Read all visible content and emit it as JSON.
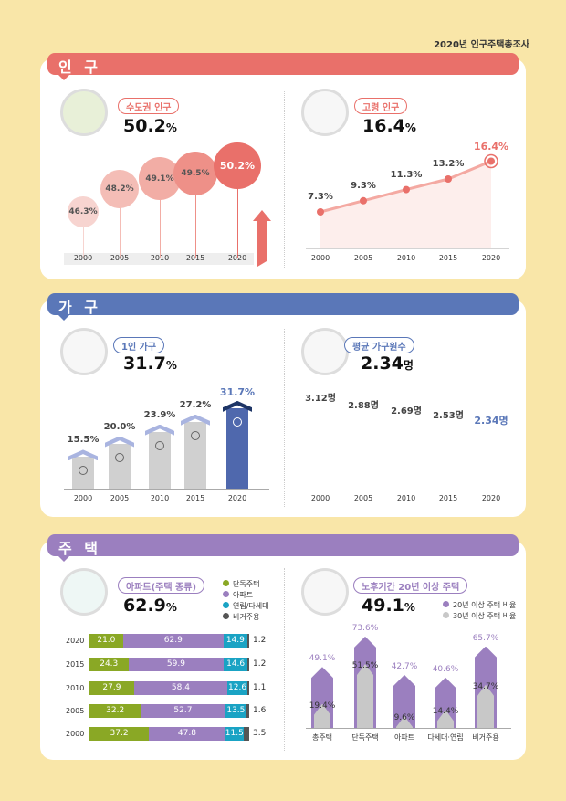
{
  "header": {
    "title": "2020년 인구주택총조사"
  },
  "sections": {
    "population": "인 구",
    "household": "가 구",
    "housing": "주 택"
  },
  "colors": {
    "population": "#e9706a",
    "household": "#5a77b8",
    "housing": "#9b7fbf",
    "bg": "#f9e6a8"
  },
  "capital": {
    "label": "수도권 인구",
    "value": "50.2",
    "unit": "%"
  },
  "elderly": {
    "label": "고령 인구",
    "value": "16.4",
    "unit": "%"
  },
  "single": {
    "label": "1인 가구",
    "value": "31.7",
    "unit": "%"
  },
  "avg": {
    "label": "평균 가구원수",
    "value": "2.34",
    "unit": "명"
  },
  "apt": {
    "label": "아파트(주택 종류)",
    "value": "62.9",
    "unit": "%"
  },
  "old": {
    "label": "노후기간 20년 이상 주택",
    "value": "49.1",
    "unit": "%"
  },
  "chart_data": [
    {
      "id": "capital",
      "type": "bubble",
      "title": "수도권 인구",
      "categories": [
        "2000",
        "2005",
        "2010",
        "2015",
        "2020"
      ],
      "values": [
        46.3,
        48.2,
        49.1,
        49.5,
        50.2
      ],
      "unit": "%"
    },
    {
      "id": "elderly",
      "type": "line",
      "title": "고령 인구",
      "categories": [
        "2000",
        "2005",
        "2010",
        "2015",
        "2020"
      ],
      "values": [
        7.3,
        9.3,
        11.3,
        13.2,
        16.4
      ],
      "unit": "%"
    },
    {
      "id": "single",
      "type": "bar",
      "title": "1인 가구",
      "categories": [
        "2000",
        "2005",
        "2010",
        "2015",
        "2020"
      ],
      "values": [
        15.5,
        20.0,
        23.9,
        27.2,
        31.7
      ],
      "unit": "%"
    },
    {
      "id": "avg",
      "type": "line",
      "title": "평균 가구원수",
      "categories": [
        "2000",
        "2005",
        "2010",
        "2015",
        "2020"
      ],
      "values": [
        3.12,
        2.88,
        2.69,
        2.53,
        2.34
      ],
      "unit": "명"
    },
    {
      "id": "apt",
      "type": "stacked-bar",
      "title": "아파트(주택 종류)",
      "categories": [
        "2020",
        "2015",
        "2010",
        "2005",
        "2000"
      ],
      "series": [
        {
          "name": "단독주택",
          "color": "#8aa825",
          "values": [
            21.0,
            24.3,
            27.9,
            32.2,
            37.2
          ]
        },
        {
          "name": "아파트",
          "color": "#9b7fbf",
          "values": [
            62.9,
            59.9,
            58.4,
            52.7,
            47.8
          ]
        },
        {
          "name": "연립/다세대",
          "color": "#1aa3c4",
          "values": [
            14.9,
            14.6,
            12.6,
            13.5,
            11.5
          ]
        },
        {
          "name": "비거주용",
          "color": "#555555",
          "values": [
            1.2,
            1.2,
            1.1,
            1.6,
            3.5
          ]
        }
      ]
    },
    {
      "id": "old",
      "type": "bar",
      "title": "노후기간 20년 이상 주택",
      "categories": [
        "총주택",
        "단독주택",
        "아파트",
        "다세대·연립",
        "비거주용"
      ],
      "series": [
        {
          "name": "20년 이상 주택 비율",
          "color": "#9b7fbf",
          "values": [
            49.1,
            73.6,
            42.7,
            40.6,
            65.7
          ]
        },
        {
          "name": "30년 이상 주택 비율",
          "color": "#c8c8c8",
          "values": [
            19.4,
            51.5,
            9.6,
            14.4,
            34.7
          ]
        }
      ]
    }
  ]
}
